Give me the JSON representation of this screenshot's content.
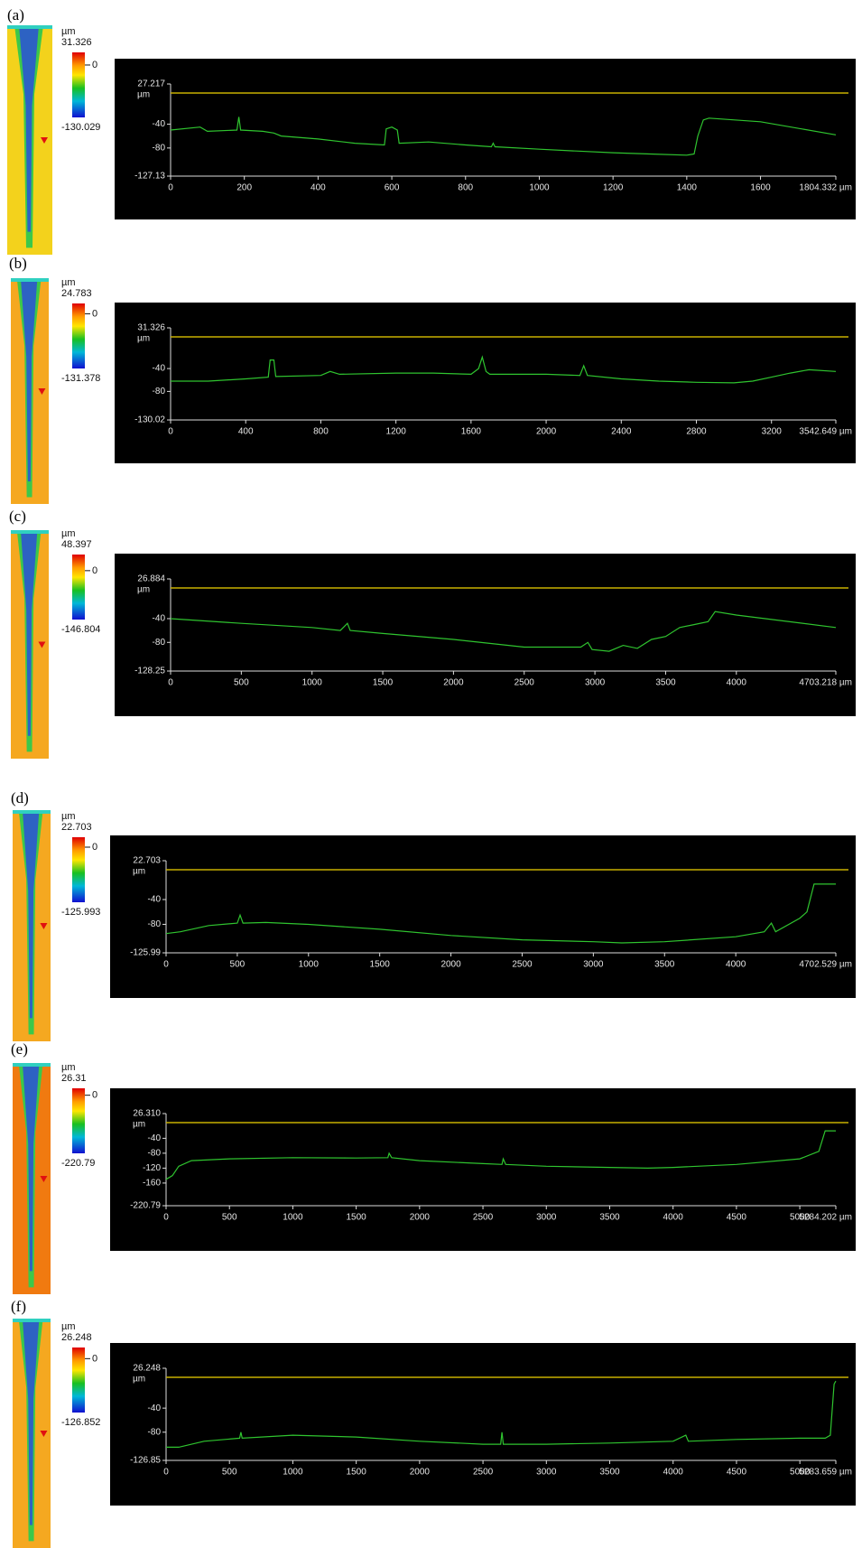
{
  "panels": [
    {
      "label": "(a)",
      "colorbar": {
        "unit": "µm",
        "max": 31.326,
        "zero": 0,
        "min": -130.029
      }
    },
    {
      "label": "(b)",
      "colorbar": {
        "unit": "µm",
        "max": 24.783,
        "zero": 0,
        "min": -131.378
      }
    },
    {
      "label": "(c)",
      "colorbar": {
        "unit": "µm",
        "max": 48.397,
        "zero": 0,
        "min": -146.804
      }
    },
    {
      "label": "(d)",
      "colorbar": {
        "unit": "µm",
        "max": 22.703,
        "zero": 0,
        "min": -125.993
      }
    },
    {
      "label": "(e)",
      "colorbar": {
        "unit": "µm",
        "max": 26.31,
        "zero": 0,
        "min": -220.79
      }
    },
    {
      "label": "(f)",
      "colorbar": {
        "unit": "µm",
        "max": 26.248,
        "zero": 0,
        "min": -126.852
      }
    }
  ],
  "chart_data": [
    {
      "type": "line",
      "y_unit": "µm",
      "x": [
        0,
        80,
        100,
        180,
        185,
        190,
        250,
        280,
        300,
        400,
        500,
        580,
        585,
        600,
        615,
        620,
        700,
        800,
        870,
        875,
        880,
        1000,
        1100,
        1200,
        1300,
        1400,
        1420,
        1430,
        1445,
        1460,
        1600,
        1804.332
      ],
      "series": [
        {
          "color": "#2fc42f",
          "values": [
            -50,
            -45,
            -52,
            -50,
            -28,
            -50,
            -52,
            -55,
            -60,
            -65,
            -72,
            -75,
            -48,
            -45,
            -50,
            -72,
            -70,
            -75,
            -78,
            -72,
            -78,
            -82,
            -85,
            -88,
            -90,
            -92,
            -90,
            -60,
            -33,
            -30,
            -36,
            -58
          ]
        }
      ],
      "xlim": [
        0,
        1804.332
      ],
      "xticks": [
        0,
        200,
        400,
        600,
        800,
        1000,
        1200,
        1400,
        1600,
        {
          "value": 1804.332,
          "label": "1804.332 µm"
        }
      ],
      "ylim": [
        -127.13,
        27.217
      ],
      "yticks": [
        27.217,
        -40,
        -80,
        -127.13
      ]
    },
    {
      "type": "line",
      "y_unit": "µm",
      "x": [
        0,
        200,
        400,
        520,
        530,
        550,
        560,
        800,
        850,
        900,
        1200,
        1400,
        1600,
        1640,
        1660,
        1680,
        1700,
        2000,
        2180,
        2200,
        2220,
        2400,
        2600,
        2800,
        3000,
        3100,
        3200,
        3300,
        3400,
        3542.649
      ],
      "series": [
        {
          "color": "#2fc42f",
          "values": [
            -62,
            -62,
            -58,
            -55,
            -25,
            -25,
            -54,
            -52,
            -45,
            -50,
            -48,
            -48,
            -50,
            -40,
            -20,
            -45,
            -50,
            -50,
            -52,
            -35,
            -52,
            -58,
            -62,
            -64,
            -65,
            -62,
            -55,
            -48,
            -42,
            -45
          ]
        }
      ],
      "xlim": [
        0,
        3542.649
      ],
      "xticks": [
        0,
        400,
        800,
        1200,
        1600,
        2000,
        2400,
        2800,
        3200,
        {
          "value": 3542.649,
          "label": "3542.649 µm"
        }
      ],
      "ylim": [
        -130.02,
        31.326
      ],
      "yticks": [
        31.326,
        -40,
        -80,
        -130.02
      ]
    },
    {
      "type": "line",
      "y_unit": "µm",
      "x": [
        0,
        500,
        1000,
        1200,
        1250,
        1270,
        1500,
        2000,
        2500,
        2900,
        2950,
        2980,
        3100,
        3200,
        3300,
        3400,
        3500,
        3600,
        3700,
        3800,
        3850,
        4000,
        4703.218
      ],
      "series": [
        {
          "color": "#2fc42f",
          "values": [
            -40,
            -48,
            -55,
            -60,
            -48,
            -60,
            -65,
            -75,
            -88,
            -88,
            -80,
            -92,
            -95,
            -85,
            -90,
            -75,
            -70,
            -55,
            -50,
            -45,
            -28,
            -34,
            -55
          ]
        }
      ],
      "xlim": [
        0,
        4703.218
      ],
      "xticks": [
        0,
        500,
        1000,
        1500,
        2000,
        2500,
        3000,
        3500,
        4000,
        {
          "value": 4703.218,
          "label": "4703.218 µm"
        }
      ],
      "ylim": [
        -128.25,
        26.884
      ],
      "yticks": [
        26.884,
        -40,
        -80,
        -128.25
      ]
    },
    {
      "type": "line",
      "y_unit": "µm",
      "x": [
        0,
        100,
        300,
        500,
        520,
        540,
        700,
        1000,
        1500,
        2000,
        2500,
        3000,
        3200,
        3500,
        4000,
        4200,
        4250,
        4280,
        4450,
        4500,
        4550,
        4702.529
      ],
      "series": [
        {
          "color": "#2fc42f",
          "values": [
            -95,
            -92,
            -82,
            -78,
            -65,
            -78,
            -77,
            -80,
            -88,
            -98,
            -105,
            -108,
            -110,
            -108,
            -100,
            -92,
            -78,
            -92,
            -70,
            -60,
            -15,
            -15
          ]
        }
      ],
      "xlim": [
        0,
        4702.529
      ],
      "xticks": [
        0,
        500,
        1000,
        1500,
        2000,
        2500,
        3000,
        3500,
        4000,
        {
          "value": 4702.529,
          "label": "4702.529 µm"
        }
      ],
      "ylim": [
        -125.99,
        22.703
      ],
      "yticks": [
        22.703,
        -40,
        -80,
        -125.99
      ]
    },
    {
      "type": "line",
      "y_unit": "µm",
      "x": [
        0,
        50,
        100,
        200,
        500,
        1000,
        1500,
        1750,
        1760,
        1780,
        2000,
        2500,
        2650,
        2660,
        2680,
        3000,
        3500,
        3800,
        4000,
        4500,
        5000,
        5150,
        5200,
        5284.202
      ],
      "series": [
        {
          "color": "#2fc42f",
          "values": [
            -150,
            -140,
            -115,
            -100,
            -95,
            -92,
            -93,
            -92,
            -80,
            -92,
            -100,
            -108,
            -110,
            -95,
            -110,
            -115,
            -118,
            -120,
            -118,
            -110,
            -95,
            -75,
            -20,
            -20
          ]
        }
      ],
      "xlim": [
        0,
        5284.202
      ],
      "xticks": [
        0,
        500,
        1000,
        1500,
        2000,
        2500,
        3000,
        3500,
        4000,
        4500,
        5000,
        {
          "value": 5284.202,
          "label": "5284.202 µm"
        }
      ],
      "ylim": [
        -220.79,
        26.31
      ],
      "yticks": [
        {
          "value": 26.31,
          "label": "26.310"
        },
        -40,
        -80,
        -120,
        -160,
        -220.79
      ]
    },
    {
      "type": "line",
      "y_unit": "µm",
      "x": [
        0,
        100,
        300,
        580,
        590,
        600,
        1000,
        1500,
        2000,
        2500,
        2640,
        2650,
        2660,
        3000,
        3500,
        4000,
        4100,
        4120,
        4500,
        5000,
        5200,
        5240,
        5270,
        5283.659
      ],
      "series": [
        {
          "color": "#2fc42f",
          "values": [
            -105,
            -105,
            -95,
            -90,
            -80,
            -90,
            -85,
            -88,
            -95,
            -100,
            -100,
            -80,
            -100,
            -100,
            -98,
            -95,
            -85,
            -95,
            -92,
            -90,
            -90,
            -85,
            0,
            5
          ]
        }
      ],
      "xlim": [
        0,
        5283.659
      ],
      "xticks": [
        0,
        500,
        1000,
        1500,
        2000,
        2500,
        3000,
        3500,
        4000,
        4500,
        5000,
        {
          "value": 5283.659,
          "label": "5283.659 µm"
        }
      ],
      "ylim": [
        -126.85,
        26.248
      ],
      "yticks": [
        26.248,
        -40,
        -80,
        -126.85
      ]
    }
  ]
}
